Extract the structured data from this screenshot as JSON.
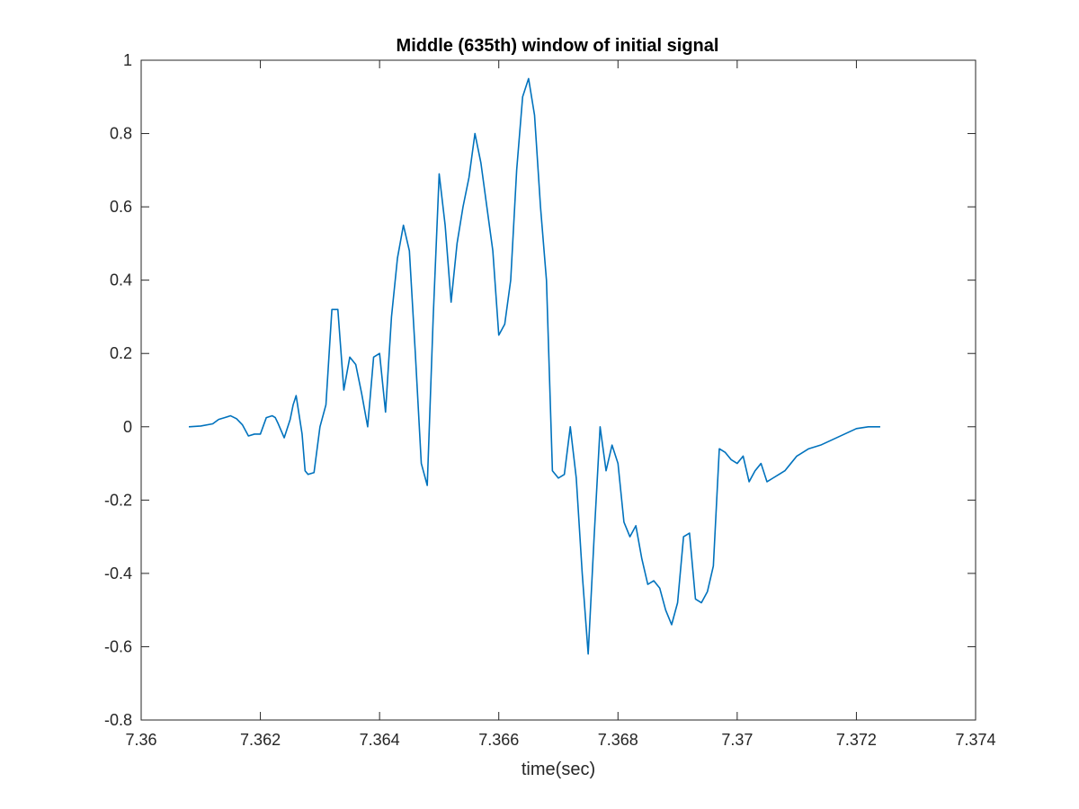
{
  "chart_data": {
    "type": "line",
    "title": "Middle (635th) window of initial signal",
    "xlabel": "time(sec)",
    "ylabel": "",
    "xlim": [
      7.36,
      7.374
    ],
    "ylim": [
      -0.8,
      1
    ],
    "xticks": [
      7.36,
      7.362,
      7.364,
      7.366,
      7.368,
      7.37,
      7.372,
      7.374
    ],
    "xtick_labels": [
      "7.36",
      "7.362",
      "7.364",
      "7.366",
      "7.368",
      "7.37",
      "7.372",
      "7.374"
    ],
    "yticks": [
      -0.8,
      -0.6,
      -0.4,
      -0.2,
      0,
      0.2,
      0.4,
      0.6,
      0.8,
      1
    ],
    "ytick_labels": [
      "-0.8",
      "-0.6",
      "-0.4",
      "-0.2",
      "0",
      "0.2",
      "0.4",
      "0.6",
      "0.8",
      "1"
    ],
    "grid": false,
    "line_color": "#0072BD",
    "series": [
      {
        "x": [
          7.3608,
          7.361,
          7.3612,
          7.3613,
          7.3614,
          7.3615,
          7.3616,
          7.3617,
          7.3618,
          7.3619,
          7.362,
          7.3621,
          7.3622,
          7.36225,
          7.3623,
          7.3624,
          7.3625,
          7.36255,
          7.3626,
          7.3627,
          7.36275,
          7.3628,
          7.3629,
          7.363,
          7.3631,
          7.3632,
          7.3633,
          7.3634,
          7.3635,
          7.3636,
          7.3637,
          7.3638,
          7.3639,
          7.364,
          7.3641,
          7.3642,
          7.3643,
          7.3644,
          7.3645,
          7.3646,
          7.3647,
          7.3648,
          7.3649,
          7.365,
          7.3651,
          7.3652,
          7.3653,
          7.3654,
          7.3655,
          7.3656,
          7.3657,
          7.3658,
          7.3659,
          7.366,
          7.3661,
          7.3662,
          7.3663,
          7.3664,
          7.3665,
          7.3666,
          7.3667,
          7.3668,
          7.3669,
          7.367,
          7.3671,
          7.3672,
          7.3673,
          7.3674,
          7.3675,
          7.3676,
          7.3677,
          7.3678,
          7.3679,
          7.368,
          7.3681,
          7.3682,
          7.3683,
          7.3684,
          7.3685,
          7.3686,
          7.3687,
          7.3688,
          7.3689,
          7.369,
          7.3691,
          7.3692,
          7.3693,
          7.3694,
          7.3695,
          7.3696,
          7.3697,
          7.3698,
          7.3699,
          7.37,
          7.3701,
          7.3702,
          7.3703,
          7.3704,
          7.3705,
          7.3706,
          7.3707,
          7.3708,
          7.3709,
          7.371,
          7.3712,
          7.3714,
          7.3716,
          7.3718,
          7.372,
          7.3722,
          7.3724
        ],
        "y": [
          0,
          0.002,
          0.008,
          0.02,
          0.025,
          0.03,
          0.022,
          0.005,
          -0.025,
          -0.02,
          -0.02,
          0.025,
          0.03,
          0.025,
          0.008,
          -0.03,
          0.02,
          0.06,
          0.085,
          -0.02,
          -0.12,
          -0.13,
          -0.125,
          0.0,
          0.06,
          0.32,
          0.32,
          0.1,
          0.19,
          0.17,
          0.09,
          0.0,
          0.19,
          0.2,
          0.04,
          0.3,
          0.46,
          0.55,
          0.48,
          0.2,
          -0.1,
          -0.16,
          0.3,
          0.69,
          0.55,
          0.34,
          0.5,
          0.6,
          0.68,
          0.8,
          0.72,
          0.6,
          0.48,
          0.25,
          0.28,
          0.4,
          0.7,
          0.9,
          0.95,
          0.85,
          0.6,
          0.4,
          -0.12,
          -0.14,
          -0.13,
          0.0,
          -0.14,
          -0.4,
          -0.62,
          -0.3,
          0.0,
          -0.12,
          -0.05,
          -0.1,
          -0.26,
          -0.3,
          -0.27,
          -0.36,
          -0.43,
          -0.42,
          -0.44,
          -0.5,
          -0.54,
          -0.48,
          -0.3,
          -0.29,
          -0.47,
          -0.48,
          -0.45,
          -0.38,
          -0.06,
          -0.07,
          -0.09,
          -0.1,
          -0.08,
          -0.15,
          -0.12,
          -0.1,
          -0.15,
          -0.14,
          -0.13,
          -0.12,
          -0.1,
          -0.08,
          -0.06,
          -0.05,
          -0.035,
          -0.02,
          -0.005,
          0,
          0
        ],
        "name": ""
      }
    ]
  }
}
